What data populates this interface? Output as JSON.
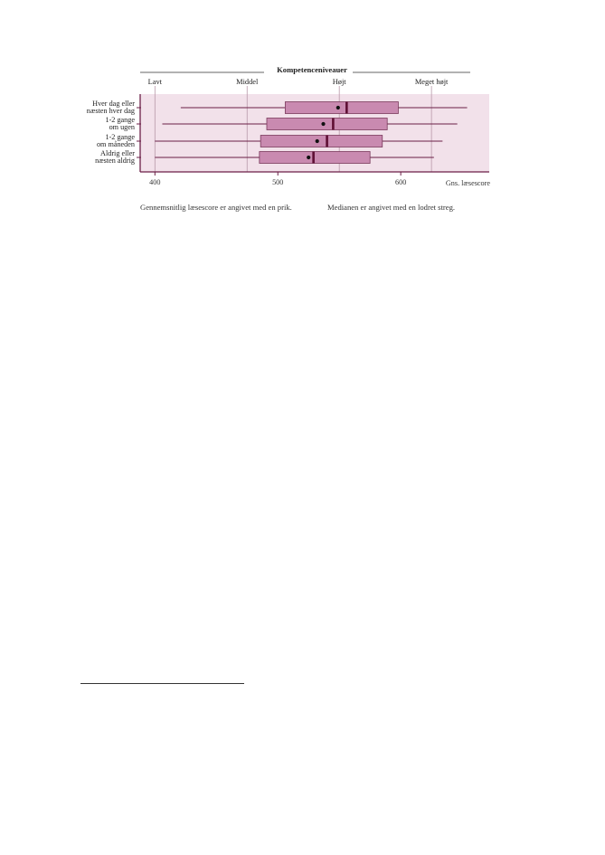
{
  "chart_data": {
    "type": "boxplot",
    "title": "Kompetenceniveauer",
    "xlabel": "Gns. læsescore",
    "xlim": [
      388,
      672
    ],
    "xticks": [
      400,
      500,
      600
    ],
    "orientation": "horizontal",
    "grid": false,
    "legend": "none",
    "reference_levels": [
      {
        "label": "Lavt",
        "value": 400
      },
      {
        "label": "Middel",
        "value": 475
      },
      {
        "label": "Højt",
        "value": 550
      },
      {
        "label": "Meget højt",
        "value": 625
      }
    ],
    "categories": [
      {
        "lines": [
          "Hver dag eller",
          "næsten hver dag"
        ],
        "min": 421,
        "q1": 506,
        "median": 556,
        "mean": 549,
        "q3": 598,
        "max": 654
      },
      {
        "lines": [
          "1-2 gange",
          "om ugen"
        ],
        "min": 406,
        "q1": 491,
        "median": 545,
        "mean": 537,
        "q3": 589,
        "max": 646
      },
      {
        "lines": [
          "1-2 gange",
          "om måneden"
        ],
        "min": 400,
        "q1": 486,
        "median": 540,
        "mean": 532,
        "q3": 585,
        "max": 634
      },
      {
        "lines": [
          "Aldrig eller",
          "næsten aldrig"
        ],
        "min": 400,
        "q1": 485,
        "median": 529,
        "mean": 525,
        "q3": 575,
        "max": 627
      }
    ]
  },
  "notes": {
    "mean_note": "Gennemsnitlig læsescore er angivet med en prik.",
    "median_note": "Medianen er angivet med en lodret streg."
  },
  "colors": {
    "panel_bg": "#f2e1ea",
    "box_fill": "#c98ab0",
    "box_stroke": "#7a3a5c",
    "whisker": "#6b1f47",
    "median": "#5e0f34",
    "axis": "#6b1f47",
    "ref_line": "#b898a8"
  }
}
